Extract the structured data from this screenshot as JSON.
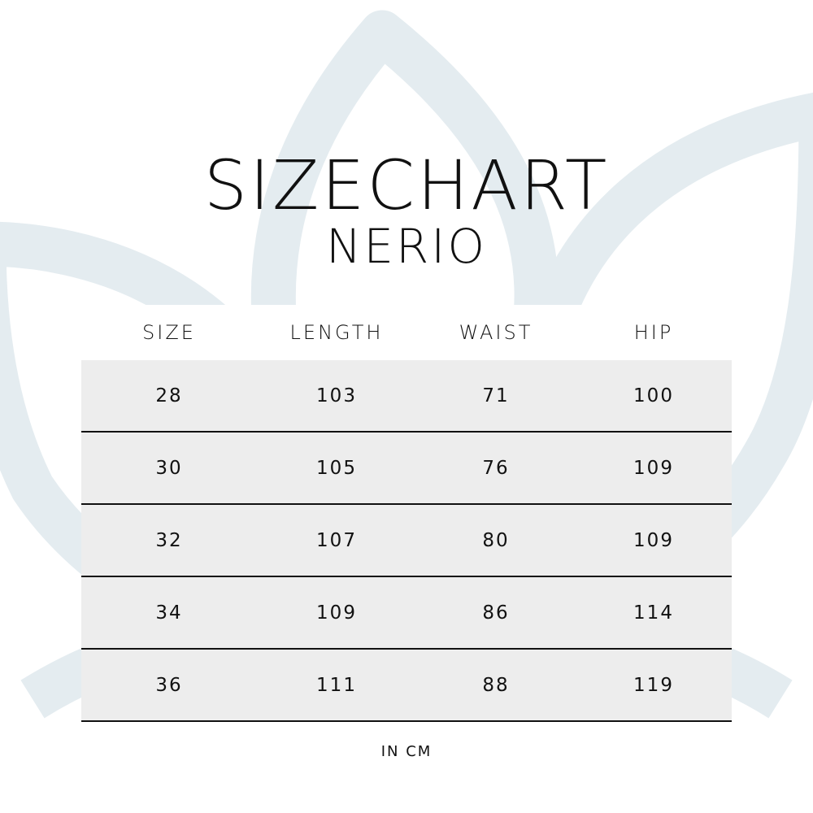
{
  "title": "SIZECHART",
  "subtitle": "NERIO",
  "colors": {
    "background_motif": "#e4ecf0",
    "row_fill": "#ededed",
    "divider": "#111111"
  },
  "background_icon": "lotus-icon",
  "table": {
    "headers": [
      "SIZE",
      "LENGTH",
      "WAIST",
      "HIP"
    ],
    "rows": [
      [
        "28",
        "103",
        "71",
        "100"
      ],
      [
        "30",
        "105",
        "76",
        "109"
      ],
      [
        "32",
        "107",
        "80",
        "109"
      ],
      [
        "34",
        "109",
        "86",
        "114"
      ],
      [
        "36",
        "111",
        "88",
        "119"
      ]
    ]
  },
  "unit_note": "IN CM"
}
